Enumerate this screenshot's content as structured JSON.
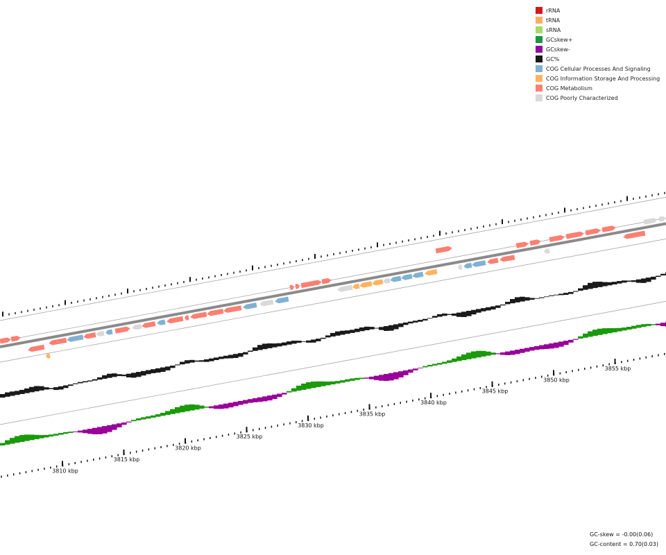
{
  "legend": [
    {
      "label": "rRNA",
      "color": "#d7191c"
    },
    {
      "label": "tRNA",
      "color": "#fdae61"
    },
    {
      "label": "sRNA",
      "color": "#a6d96a"
    },
    {
      "label": "GCskew+",
      "color": "#1a9641"
    },
    {
      "label": "GCskew-",
      "color": "#8e0b9e"
    },
    {
      "label": "GC%",
      "color": "#1a1a1a"
    },
    {
      "label": "COG Cellular Processes And Signaling",
      "color": "#80b1d3"
    },
    {
      "label": "COG Information Storage And Processing",
      "color": "#fdb462"
    },
    {
      "label": "COG Metabolism",
      "color": "#fb8072"
    },
    {
      "label": "COG Poorly Characterized",
      "color": "#d9d9d9"
    }
  ],
  "scale": {
    "tick_labels": [
      "3810 kbp",
      "3815 kbp",
      "3820 kbp",
      "3825 kbp",
      "3830 kbp",
      "3835 kbp",
      "3840 kbp",
      "3845 kbp",
      "3850 kbp",
      "3855 kbp"
    ],
    "tick_values_kbp": [
      3810,
      3815,
      3820,
      3825,
      3830,
      3835,
      3840,
      3845,
      3850,
      3855
    ]
  },
  "footer": {
    "gc_skew": "GC-skew = -0.00(0.06)",
    "gc_content": "GC-content = 0.70(0.03)"
  },
  "colors": {
    "gc_percent": "#1a1a1a",
    "skew_positive": "#1a9a0a",
    "skew_negative": "#990099",
    "backbone": "#8a8a8a",
    "guide_line": "#9a9a9a"
  }
}
